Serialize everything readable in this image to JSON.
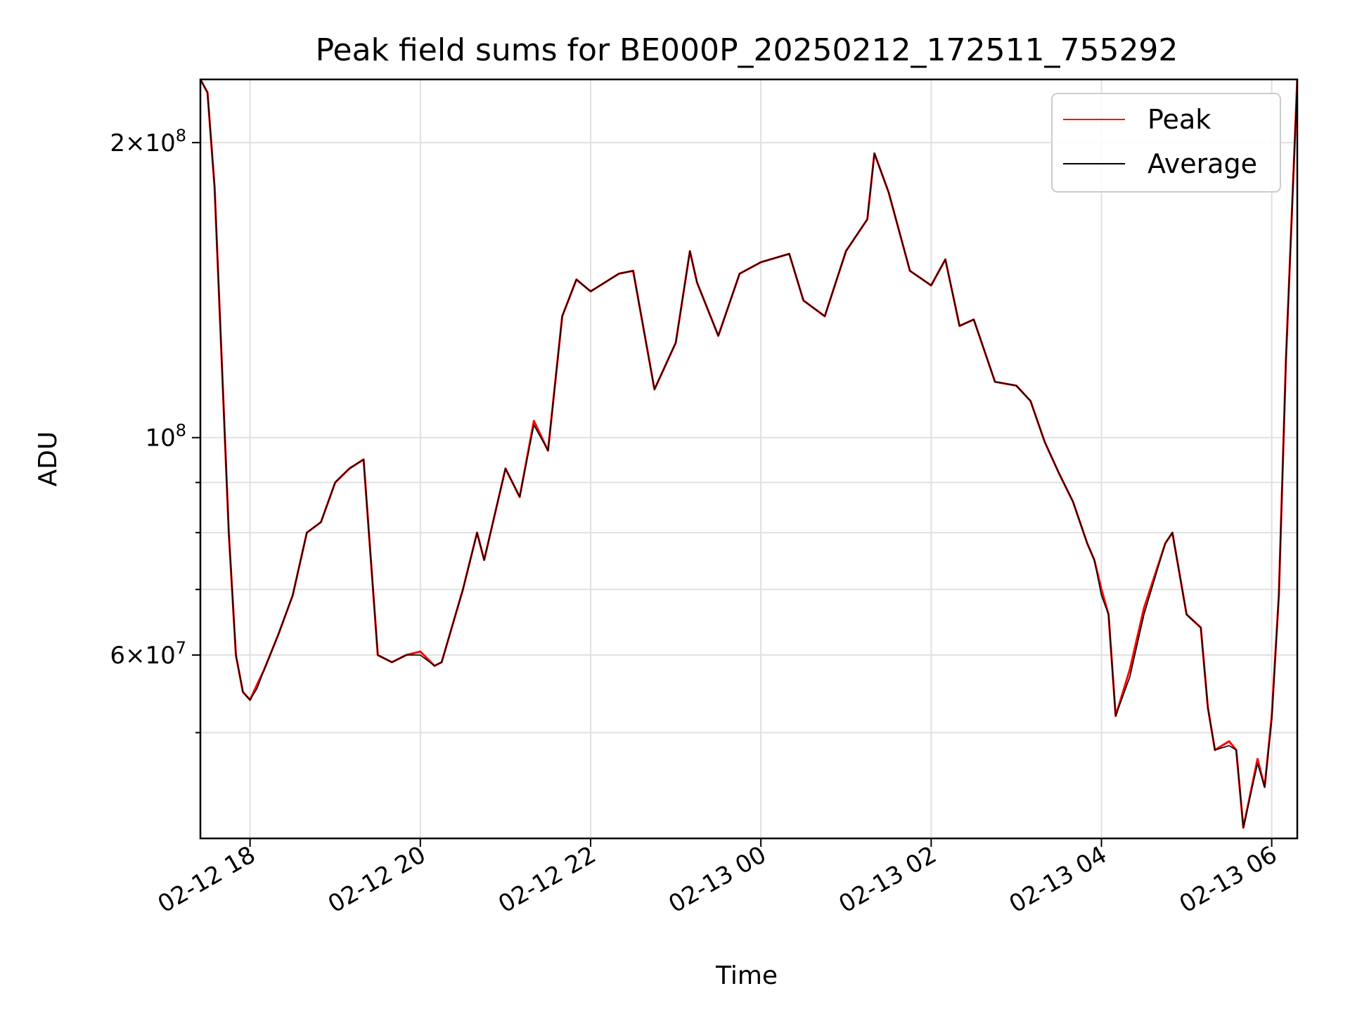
{
  "chart_data": {
    "type": "line",
    "title": "Peak field sums for BE000P_20250212_172511_755292",
    "xlabel": "Time",
    "ylabel": "ADU",
    "yscale": "log",
    "grid": true,
    "legend_position": "top-right",
    "xlim": [
      "2025-02-12 17:25",
      "2025-02-13 06:18"
    ],
    "ylim": [
      39000000,
      232000000
    ],
    "x_ticks": [
      {
        "value": "2025-02-12 18:00",
        "label": "02-12 18"
      },
      {
        "value": "2025-02-12 20:00",
        "label": "02-12 20"
      },
      {
        "value": "2025-02-12 22:00",
        "label": "02-12 22"
      },
      {
        "value": "2025-02-13 00:00",
        "label": "02-13 00"
      },
      {
        "value": "2025-02-13 02:00",
        "label": "02-13 02"
      },
      {
        "value": "2025-02-13 04:00",
        "label": "02-13 04"
      },
      {
        "value": "2025-02-13 06:00",
        "label": "02-13 06"
      }
    ],
    "y_major_ticks": [
      {
        "value": 60000000,
        "mantissa": "6",
        "base": "10",
        "exp": "7",
        "times": "×"
      },
      {
        "value": 100000000,
        "mantissa": "",
        "base": "10",
        "exp": "8",
        "times": ""
      },
      {
        "value": 200000000,
        "mantissa": "2",
        "base": "10",
        "exp": "8",
        "times": "×"
      }
    ],
    "y_minor_ticks": [
      50000000,
      70000000,
      80000000,
      90000000
    ],
    "x": [
      "2025-02-12 17:25",
      "2025-02-12 17:30",
      "2025-02-12 17:35",
      "2025-02-12 17:40",
      "2025-02-12 17:45",
      "2025-02-12 17:50",
      "2025-02-12 17:55",
      "2025-02-12 18:00",
      "2025-02-12 18:05",
      "2025-02-12 18:10",
      "2025-02-12 18:20",
      "2025-02-12 18:30",
      "2025-02-12 18:40",
      "2025-02-12 18:50",
      "2025-02-12 19:00",
      "2025-02-12 19:10",
      "2025-02-12 19:20",
      "2025-02-12 19:30",
      "2025-02-12 19:40",
      "2025-02-12 19:50",
      "2025-02-12 20:00",
      "2025-02-12 20:10",
      "2025-02-12 20:15",
      "2025-02-12 20:30",
      "2025-02-12 20:40",
      "2025-02-12 20:45",
      "2025-02-12 21:00",
      "2025-02-12 21:10",
      "2025-02-12 21:20",
      "2025-02-12 21:30",
      "2025-02-12 21:40",
      "2025-02-12 21:50",
      "2025-02-12 22:00",
      "2025-02-12 22:20",
      "2025-02-12 22:30",
      "2025-02-12 22:45",
      "2025-02-12 23:00",
      "2025-02-12 23:10",
      "2025-02-12 23:15",
      "2025-02-12 23:30",
      "2025-02-12 23:45",
      "2025-02-13 00:00",
      "2025-02-13 00:20",
      "2025-02-13 00:30",
      "2025-02-13 00:45",
      "2025-02-13 01:00",
      "2025-02-13 01:15",
      "2025-02-13 01:20",
      "2025-02-13 01:30",
      "2025-02-13 01:45",
      "2025-02-13 02:00",
      "2025-02-13 02:10",
      "2025-02-13 02:20",
      "2025-02-13 02:30",
      "2025-02-13 02:45",
      "2025-02-13 03:00",
      "2025-02-13 03:10",
      "2025-02-13 03:20",
      "2025-02-13 03:30",
      "2025-02-13 03:40",
      "2025-02-13 03:50",
      "2025-02-13 03:55",
      "2025-02-13 04:00",
      "2025-02-13 04:05",
      "2025-02-13 04:10",
      "2025-02-13 04:20",
      "2025-02-13 04:30",
      "2025-02-13 04:45",
      "2025-02-13 04:50",
      "2025-02-13 05:00",
      "2025-02-13 05:10",
      "2025-02-13 05:15",
      "2025-02-13 05:20",
      "2025-02-13 05:30",
      "2025-02-13 05:35",
      "2025-02-13 05:40",
      "2025-02-13 05:50",
      "2025-02-13 05:55",
      "2025-02-13 06:00",
      "2025-02-13 06:05",
      "2025-02-13 06:10",
      "2025-02-13 06:18"
    ],
    "series": [
      {
        "name": "Peak",
        "color": "#ff0000",
        "values": [
          240000000,
          225000000,
          180000000,
          120000000,
          80000000,
          60000000,
          55000000,
          54000000,
          56000000,
          58000000,
          63000000,
          69000000,
          80000000,
          82000000,
          90000000,
          93000000,
          95000000,
          60000000,
          59000000,
          60000000,
          60500000,
          58500000,
          59000000,
          70000000,
          80000000,
          75000000,
          93000000,
          87000000,
          104000000,
          97000000,
          133000000,
          145000000,
          141000000,
          147000000,
          148000000,
          112000000,
          125000000,
          155000000,
          144000000,
          127000000,
          147000000,
          151000000,
          154000000,
          138000000,
          133000000,
          155000000,
          167000000,
          195000000,
          178000000,
          148000000,
          143000000,
          152000000,
          130000000,
          132000000,
          114000000,
          113000000,
          109000000,
          99000000,
          92000000,
          86000000,
          78000000,
          75000000,
          70000000,
          66000000,
          52000000,
          58000000,
          67000000,
          78000000,
          80000000,
          66000000,
          64000000,
          53000000,
          48000000,
          49000000,
          48000000,
          40000000,
          47000000,
          44000000,
          52000000,
          69000000,
          120000000,
          240000000
        ]
      },
      {
        "name": "Average",
        "color": "#000000",
        "values": [
          240000000,
          225000000,
          180000000,
          120000000,
          80000000,
          60000000,
          55000000,
          54000000,
          55500000,
          58000000,
          63000000,
          69000000,
          80000000,
          82000000,
          90000000,
          93000000,
          95000000,
          60000000,
          59000000,
          60000000,
          60000000,
          58500000,
          59000000,
          70000000,
          80000000,
          75000000,
          93000000,
          87000000,
          103000000,
          97000000,
          133000000,
          145000000,
          141000000,
          147000000,
          148000000,
          112000000,
          125000000,
          155000000,
          144000000,
          127000000,
          147000000,
          151000000,
          154000000,
          138000000,
          133000000,
          155000000,
          167000000,
          195000000,
          178000000,
          148000000,
          143000000,
          152000000,
          130000000,
          132000000,
          114000000,
          113000000,
          109000000,
          99000000,
          92000000,
          86000000,
          78000000,
          75000000,
          69000000,
          66000000,
          52000000,
          57000000,
          66000000,
          78000000,
          80000000,
          66000000,
          64000000,
          53000000,
          48000000,
          48500000,
          48000000,
          40000000,
          46500000,
          44000000,
          51500000,
          69000000,
          120000000,
          240000000
        ]
      }
    ]
  }
}
